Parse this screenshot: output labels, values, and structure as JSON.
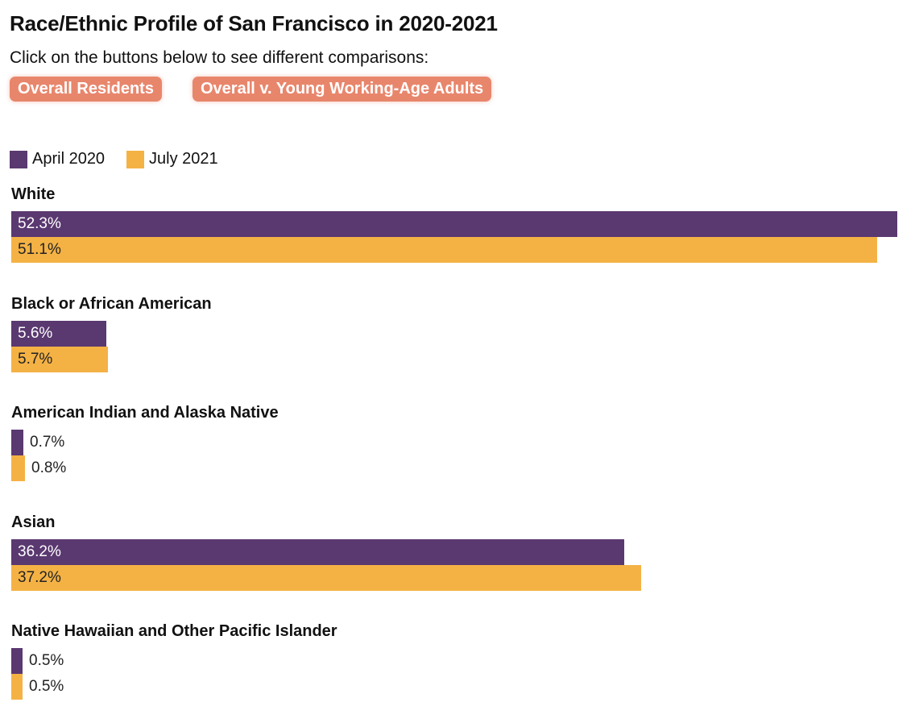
{
  "title": "Race/Ethnic Profile of San Francisco in 2020-2021",
  "subtitle": "Click on the buttons below to see different comparisons:",
  "buttons": [
    {
      "label": "Overall Residents"
    },
    {
      "label": "Overall v. Young Working-Age Adults"
    }
  ],
  "colors": {
    "button": "#E8866C",
    "april_2020": "#5A3870",
    "july_2021": "#F4B245",
    "text_on_dark": "#ffffff",
    "text_on_light": "#222222"
  },
  "legend": [
    {
      "label": "April 2020",
      "color": "#5A3870"
    },
    {
      "label": "July 2021",
      "color": "#F4B245"
    }
  ],
  "chart_data": {
    "type": "bar",
    "orientation": "horizontal",
    "title": "Race/Ethnic Profile of San Francisco in 2020-2021",
    "categories": [
      "White",
      "Black or African American",
      "American Indian and Alaska Native",
      "Asian",
      "Native Hawaiian and Other Pacific Islander"
    ],
    "series": [
      {
        "name": "April 2020",
        "values": [
          52.3,
          5.6,
          0.7,
          36.2,
          0.5
        ],
        "labels": [
          "52.3%",
          "5.6%",
          "0.7%",
          "36.2%",
          "0.5%"
        ]
      },
      {
        "name": "July 2021",
        "values": [
          51.1,
          5.7,
          0.8,
          37.2,
          0.5
        ],
        "labels": [
          "51.1%",
          "5.7%",
          "0.8%",
          "37.2%",
          "0.5%"
        ]
      }
    ],
    "xlim": [
      0,
      52.3
    ],
    "grid": false,
    "legend_position": "top-left"
  }
}
